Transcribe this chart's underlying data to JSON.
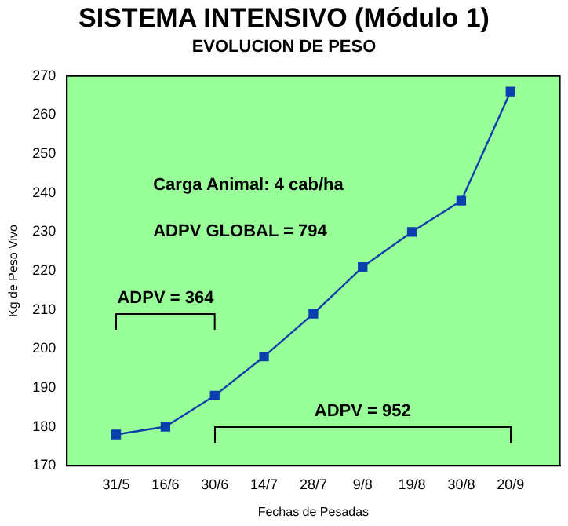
{
  "chart_data": {
    "type": "line",
    "title": "SISTEMA INTENSIVO (Módulo 1)",
    "subtitle": "EVOLUCION DE PESO",
    "xlabel": "Fechas de Pesadas",
    "ylabel": "Kg de Peso Vivo",
    "categories": [
      null,
      "31/5",
      "16/6",
      "30/6",
      "14/7",
      "28/7",
      "9/8",
      "19/8",
      "30/8",
      "20/9",
      null
    ],
    "series": [
      {
        "color": "#0b3fae",
        "values": [
          null,
          178,
          180,
          188,
          198,
          209,
          221,
          230,
          238,
          266,
          null
        ]
      }
    ],
    "ylim": [
      170,
      270
    ],
    "yticks": [
      170,
      180,
      190,
      200,
      210,
      220,
      230,
      240,
      250,
      260,
      270
    ],
    "annotations": [
      "Carga Animal: 4 cab/ha",
      "ADPV GLOBAL = 794",
      "ADPV = 364",
      "ADPV = 952"
    ],
    "grid": false,
    "legend": false,
    "marker": "square",
    "line_style": "solid"
  }
}
